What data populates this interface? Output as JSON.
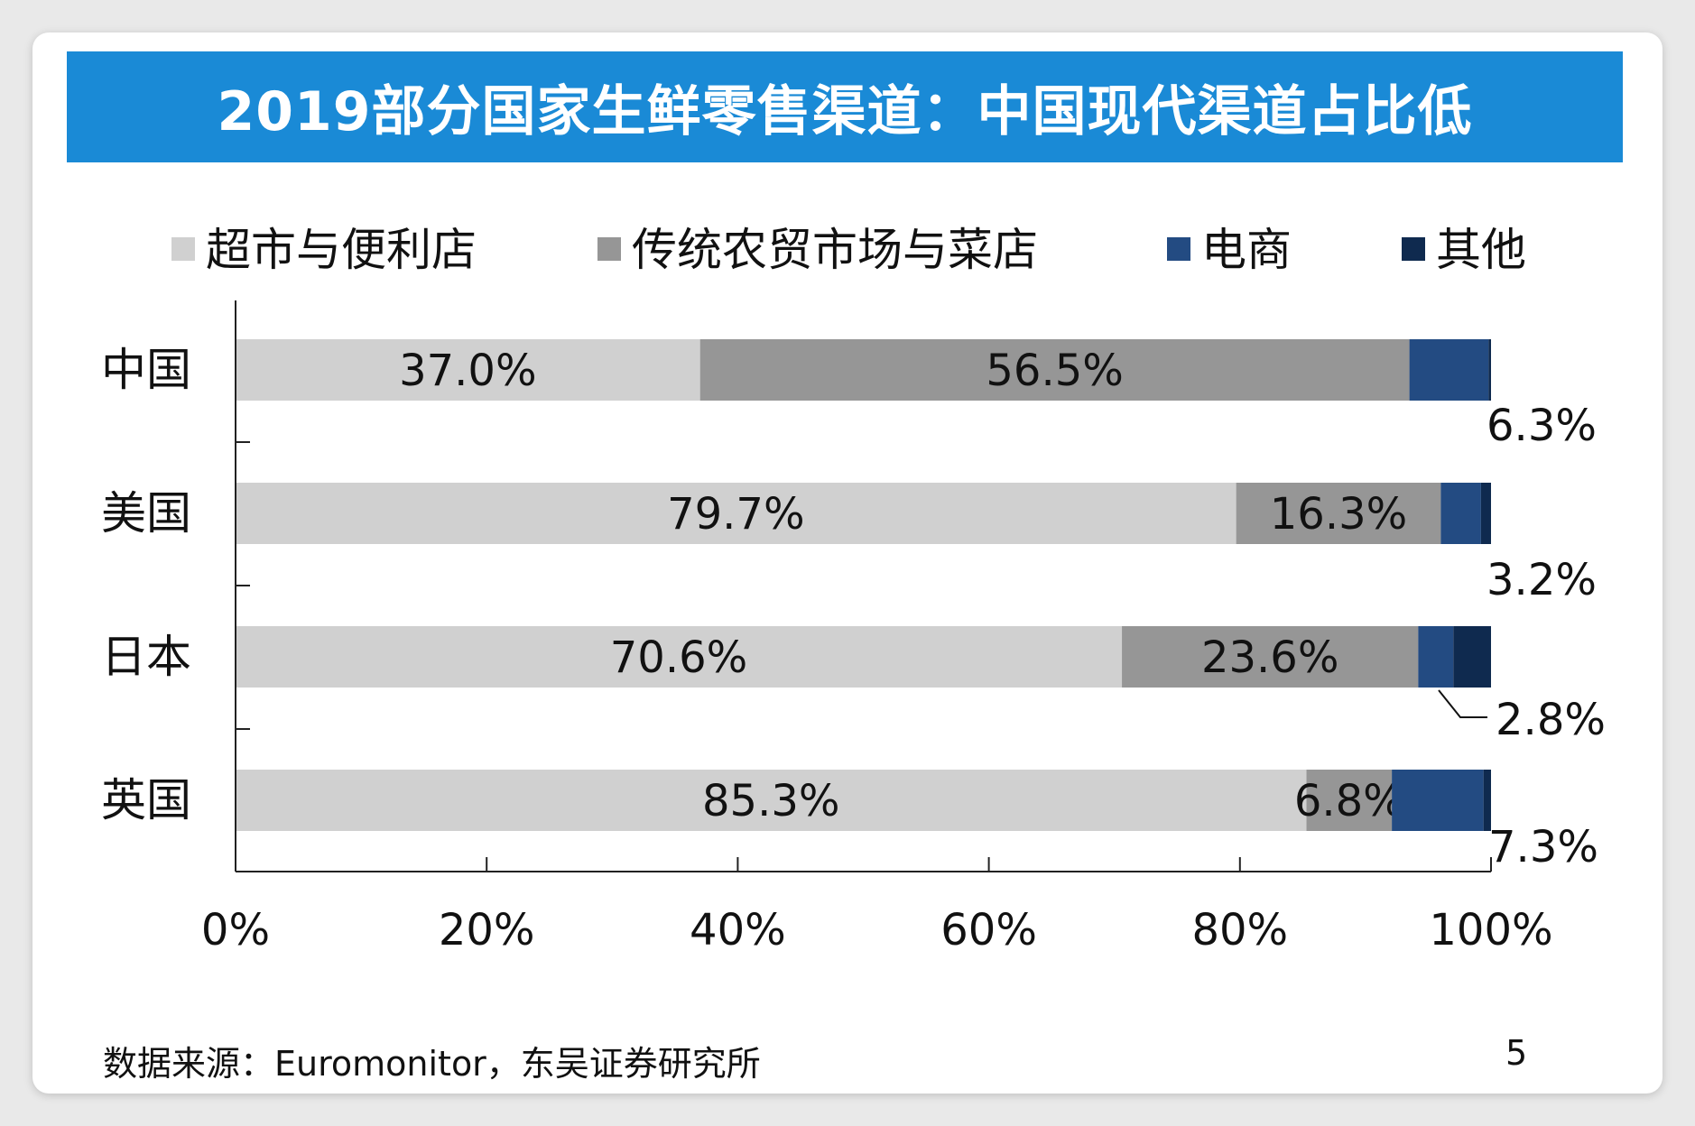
{
  "chart_data": {
    "type": "bar",
    "orientation": "horizontal",
    "stacked": true,
    "title": "2019部分国家生鲜零售渠道：中国现代渠道占比低",
    "categories": [
      "中国",
      "美国",
      "日本",
      "英国"
    ],
    "series": [
      {
        "name": "超市与便利店",
        "color": "#d0d0d0",
        "values": [
          37.0,
          79.7,
          70.6,
          85.3
        ],
        "labels": [
          "37.0%",
          "79.7%",
          "70.6%",
          "85.3%"
        ]
      },
      {
        "name": "传统农贸市场与菜店",
        "color": "#969696",
        "values": [
          56.5,
          16.3,
          23.6,
          6.8
        ],
        "labels": [
          "56.5%",
          "16.3%",
          "23.6%",
          "6.8%"
        ]
      },
      {
        "name": "电商",
        "color": "#234b82",
        "values": [
          6.3,
          3.2,
          2.8,
          7.3
        ],
        "labels": [
          "6.3%",
          "3.2%",
          "2.8%",
          "7.3%"
        ]
      },
      {
        "name": "其他",
        "color": "#0f2a4f",
        "values": [
          0.2,
          0.8,
          3.0,
          0.6
        ],
        "labels": [
          "",
          "",
          "",
          ""
        ]
      }
    ],
    "x_ticks": [
      "0%",
      "20%",
      "40%",
      "60%",
      "80%",
      "100%"
    ],
    "xlim": [
      0,
      100
    ],
    "legend_position": "top",
    "grid": false
  },
  "footer": {
    "source": "数据来源：Euromonitor，东吴证券研究所",
    "page": "5"
  }
}
